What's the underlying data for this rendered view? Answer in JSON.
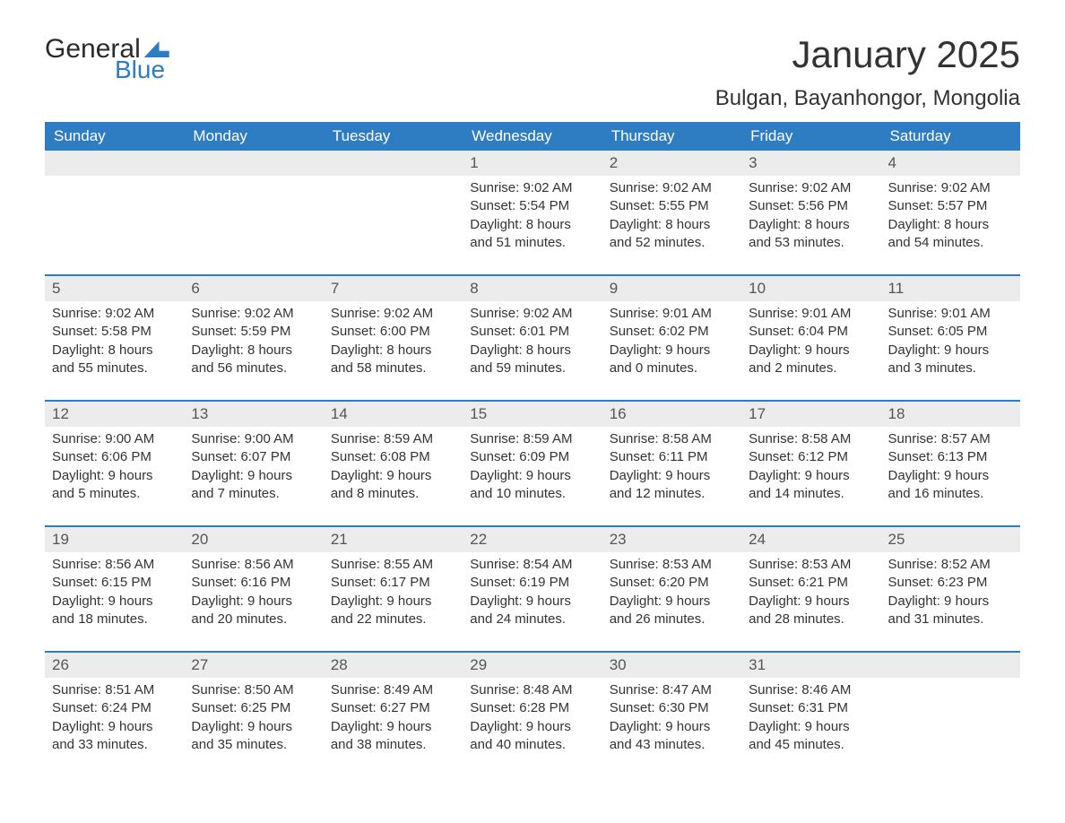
{
  "logo": {
    "text_top": "General",
    "text_bottom": "Blue"
  },
  "title": "January 2025",
  "location": "Bulgan, Bayanhongor, Mongolia",
  "colors": {
    "header_bg": "#2e7cc1",
    "header_text": "#ffffff",
    "daynum_bg": "#ececec",
    "text": "#333333",
    "rule": "#2e7cc1",
    "page_bg": "#ffffff"
  },
  "weekdays": [
    "Sunday",
    "Monday",
    "Tuesday",
    "Wednesday",
    "Thursday",
    "Friday",
    "Saturday"
  ],
  "weeks": [
    [
      {
        "day": "",
        "sunrise": "",
        "sunset": "",
        "daylight1": "",
        "daylight2": ""
      },
      {
        "day": "",
        "sunrise": "",
        "sunset": "",
        "daylight1": "",
        "daylight2": ""
      },
      {
        "day": "",
        "sunrise": "",
        "sunset": "",
        "daylight1": "",
        "daylight2": ""
      },
      {
        "day": "1",
        "sunrise": "Sunrise: 9:02 AM",
        "sunset": "Sunset: 5:54 PM",
        "daylight1": "Daylight: 8 hours",
        "daylight2": "and 51 minutes."
      },
      {
        "day": "2",
        "sunrise": "Sunrise: 9:02 AM",
        "sunset": "Sunset: 5:55 PM",
        "daylight1": "Daylight: 8 hours",
        "daylight2": "and 52 minutes."
      },
      {
        "day": "3",
        "sunrise": "Sunrise: 9:02 AM",
        "sunset": "Sunset: 5:56 PM",
        "daylight1": "Daylight: 8 hours",
        "daylight2": "and 53 minutes."
      },
      {
        "day": "4",
        "sunrise": "Sunrise: 9:02 AM",
        "sunset": "Sunset: 5:57 PM",
        "daylight1": "Daylight: 8 hours",
        "daylight2": "and 54 minutes."
      }
    ],
    [
      {
        "day": "5",
        "sunrise": "Sunrise: 9:02 AM",
        "sunset": "Sunset: 5:58 PM",
        "daylight1": "Daylight: 8 hours",
        "daylight2": "and 55 minutes."
      },
      {
        "day": "6",
        "sunrise": "Sunrise: 9:02 AM",
        "sunset": "Sunset: 5:59 PM",
        "daylight1": "Daylight: 8 hours",
        "daylight2": "and 56 minutes."
      },
      {
        "day": "7",
        "sunrise": "Sunrise: 9:02 AM",
        "sunset": "Sunset: 6:00 PM",
        "daylight1": "Daylight: 8 hours",
        "daylight2": "and 58 minutes."
      },
      {
        "day": "8",
        "sunrise": "Sunrise: 9:02 AM",
        "sunset": "Sunset: 6:01 PM",
        "daylight1": "Daylight: 8 hours",
        "daylight2": "and 59 minutes."
      },
      {
        "day": "9",
        "sunrise": "Sunrise: 9:01 AM",
        "sunset": "Sunset: 6:02 PM",
        "daylight1": "Daylight: 9 hours",
        "daylight2": "and 0 minutes."
      },
      {
        "day": "10",
        "sunrise": "Sunrise: 9:01 AM",
        "sunset": "Sunset: 6:04 PM",
        "daylight1": "Daylight: 9 hours",
        "daylight2": "and 2 minutes."
      },
      {
        "day": "11",
        "sunrise": "Sunrise: 9:01 AM",
        "sunset": "Sunset: 6:05 PM",
        "daylight1": "Daylight: 9 hours",
        "daylight2": "and 3 minutes."
      }
    ],
    [
      {
        "day": "12",
        "sunrise": "Sunrise: 9:00 AM",
        "sunset": "Sunset: 6:06 PM",
        "daylight1": "Daylight: 9 hours",
        "daylight2": "and 5 minutes."
      },
      {
        "day": "13",
        "sunrise": "Sunrise: 9:00 AM",
        "sunset": "Sunset: 6:07 PM",
        "daylight1": "Daylight: 9 hours",
        "daylight2": "and 7 minutes."
      },
      {
        "day": "14",
        "sunrise": "Sunrise: 8:59 AM",
        "sunset": "Sunset: 6:08 PM",
        "daylight1": "Daylight: 9 hours",
        "daylight2": "and 8 minutes."
      },
      {
        "day": "15",
        "sunrise": "Sunrise: 8:59 AM",
        "sunset": "Sunset: 6:09 PM",
        "daylight1": "Daylight: 9 hours",
        "daylight2": "and 10 minutes."
      },
      {
        "day": "16",
        "sunrise": "Sunrise: 8:58 AM",
        "sunset": "Sunset: 6:11 PM",
        "daylight1": "Daylight: 9 hours",
        "daylight2": "and 12 minutes."
      },
      {
        "day": "17",
        "sunrise": "Sunrise: 8:58 AM",
        "sunset": "Sunset: 6:12 PM",
        "daylight1": "Daylight: 9 hours",
        "daylight2": "and 14 minutes."
      },
      {
        "day": "18",
        "sunrise": "Sunrise: 8:57 AM",
        "sunset": "Sunset: 6:13 PM",
        "daylight1": "Daylight: 9 hours",
        "daylight2": "and 16 minutes."
      }
    ],
    [
      {
        "day": "19",
        "sunrise": "Sunrise: 8:56 AM",
        "sunset": "Sunset: 6:15 PM",
        "daylight1": "Daylight: 9 hours",
        "daylight2": "and 18 minutes."
      },
      {
        "day": "20",
        "sunrise": "Sunrise: 8:56 AM",
        "sunset": "Sunset: 6:16 PM",
        "daylight1": "Daylight: 9 hours",
        "daylight2": "and 20 minutes."
      },
      {
        "day": "21",
        "sunrise": "Sunrise: 8:55 AM",
        "sunset": "Sunset: 6:17 PM",
        "daylight1": "Daylight: 9 hours",
        "daylight2": "and 22 minutes."
      },
      {
        "day": "22",
        "sunrise": "Sunrise: 8:54 AM",
        "sunset": "Sunset: 6:19 PM",
        "daylight1": "Daylight: 9 hours",
        "daylight2": "and 24 minutes."
      },
      {
        "day": "23",
        "sunrise": "Sunrise: 8:53 AM",
        "sunset": "Sunset: 6:20 PM",
        "daylight1": "Daylight: 9 hours",
        "daylight2": "and 26 minutes."
      },
      {
        "day": "24",
        "sunrise": "Sunrise: 8:53 AM",
        "sunset": "Sunset: 6:21 PM",
        "daylight1": "Daylight: 9 hours",
        "daylight2": "and 28 minutes."
      },
      {
        "day": "25",
        "sunrise": "Sunrise: 8:52 AM",
        "sunset": "Sunset: 6:23 PM",
        "daylight1": "Daylight: 9 hours",
        "daylight2": "and 31 minutes."
      }
    ],
    [
      {
        "day": "26",
        "sunrise": "Sunrise: 8:51 AM",
        "sunset": "Sunset: 6:24 PM",
        "daylight1": "Daylight: 9 hours",
        "daylight2": "and 33 minutes."
      },
      {
        "day": "27",
        "sunrise": "Sunrise: 8:50 AM",
        "sunset": "Sunset: 6:25 PM",
        "daylight1": "Daylight: 9 hours",
        "daylight2": "and 35 minutes."
      },
      {
        "day": "28",
        "sunrise": "Sunrise: 8:49 AM",
        "sunset": "Sunset: 6:27 PM",
        "daylight1": "Daylight: 9 hours",
        "daylight2": "and 38 minutes."
      },
      {
        "day": "29",
        "sunrise": "Sunrise: 8:48 AM",
        "sunset": "Sunset: 6:28 PM",
        "daylight1": "Daylight: 9 hours",
        "daylight2": "and 40 minutes."
      },
      {
        "day": "30",
        "sunrise": "Sunrise: 8:47 AM",
        "sunset": "Sunset: 6:30 PM",
        "daylight1": "Daylight: 9 hours",
        "daylight2": "and 43 minutes."
      },
      {
        "day": "31",
        "sunrise": "Sunrise: 8:46 AM",
        "sunset": "Sunset: 6:31 PM",
        "daylight1": "Daylight: 9 hours",
        "daylight2": "and 45 minutes."
      },
      {
        "day": "",
        "sunrise": "",
        "sunset": "",
        "daylight1": "",
        "daylight2": ""
      }
    ]
  ]
}
